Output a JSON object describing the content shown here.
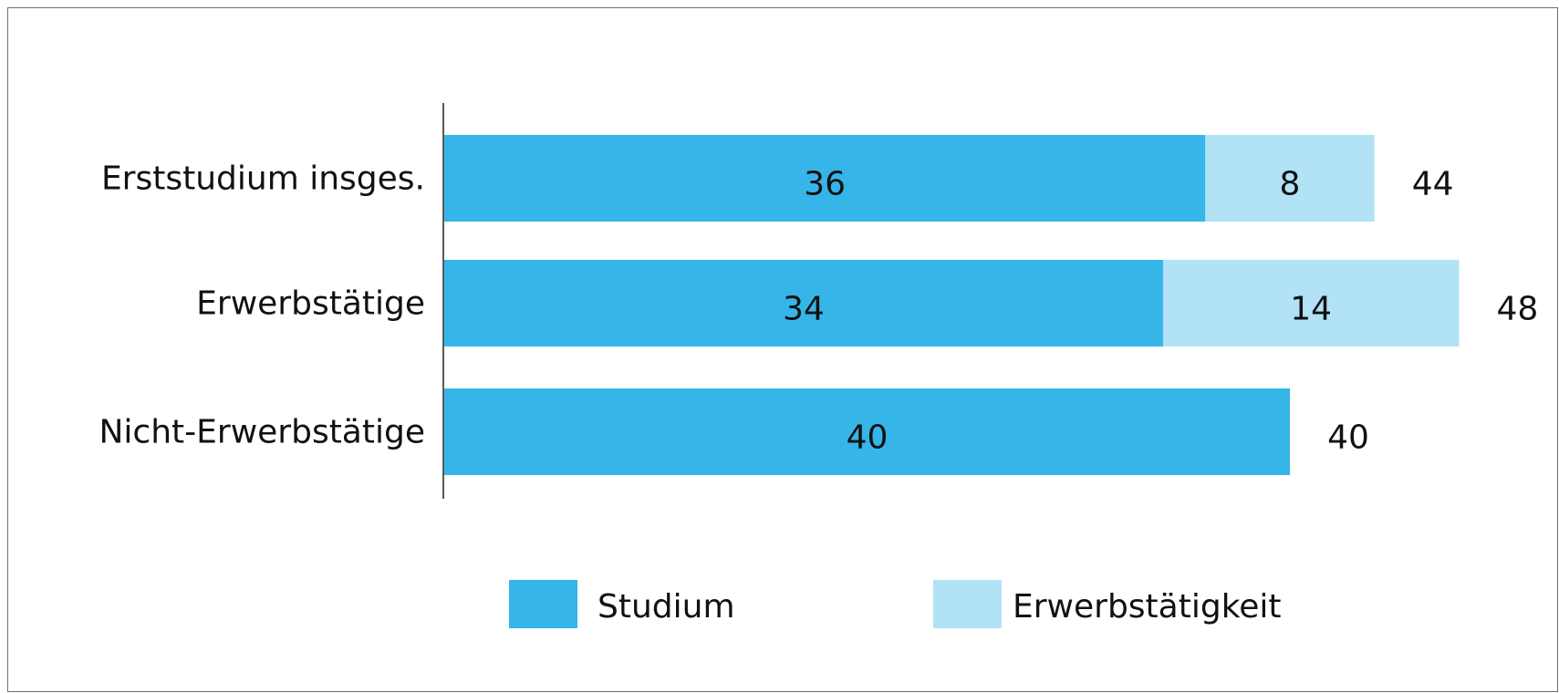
{
  "chart_data": {
    "type": "bar",
    "orientation": "horizontal",
    "stacked": true,
    "categories": [
      "Erststudium insges.",
      "Erwerbstätige",
      "Nicht-Erwerbstätige"
    ],
    "series": [
      {
        "name": "Studium",
        "values": [
          36,
          34,
          40
        ],
        "color": "#35b5e8"
      },
      {
        "name": "Erwerbstätigkeit",
        "values": [
          8,
          14,
          0
        ],
        "color": "#b1e2f6"
      }
    ],
    "totals": [
      44,
      48,
      40
    ],
    "legend_position": "bottom",
    "grid": false
  }
}
